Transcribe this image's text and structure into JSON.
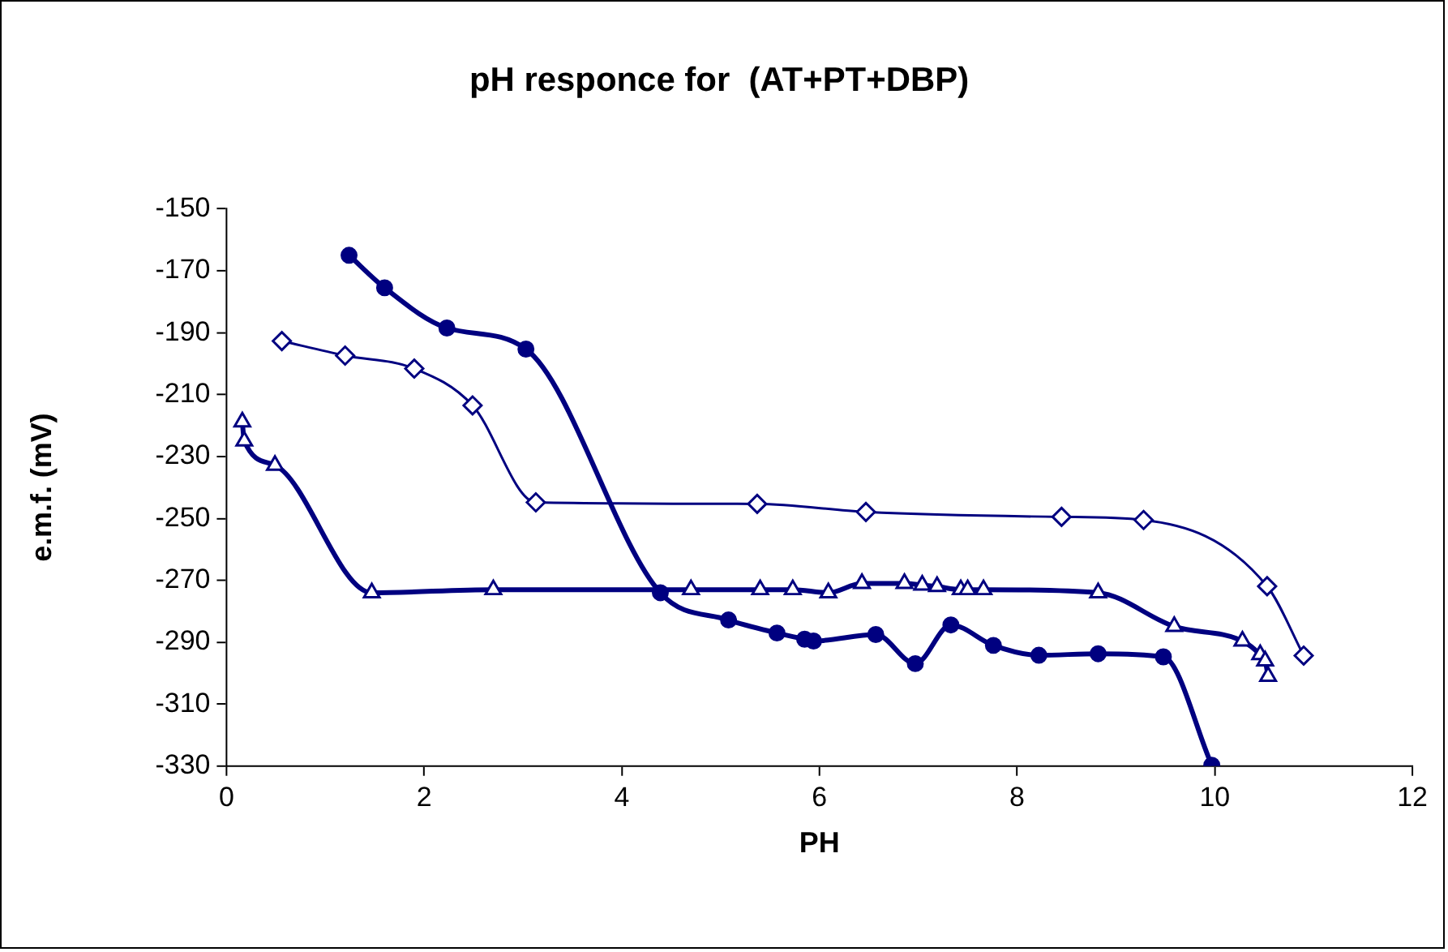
{
  "chart_data": {
    "type": "line",
    "title": "pH responce for  (AT+PT+DBP)",
    "xlabel": "PH",
    "ylabel": "e.m.f. (mV)",
    "xlim": [
      0,
      12
    ],
    "xticks": [
      0,
      2,
      4,
      6,
      8,
      10,
      12
    ],
    "ylim": [
      -330,
      -150
    ],
    "yticks": [
      -330,
      -310,
      -290,
      -270,
      -250,
      -230,
      -210,
      -190,
      -170,
      -150
    ],
    "series": [
      {
        "color": "#000080",
        "marker": "circle",
        "x": [
          1.24,
          1.6,
          2.23,
          3.03,
          4.39,
          5.08,
          5.57,
          5.85,
          5.94,
          6.57,
          6.97,
          7.33,
          7.76,
          8.22,
          8.82,
          9.48,
          9.97
        ],
        "values": [
          -165,
          -175.5,
          -188.5,
          -195.3,
          -274,
          -282.8,
          -287,
          -289,
          -289.6,
          -287.5,
          -296.9,
          -284.4,
          -291,
          -294.2,
          -293.7,
          -294.7,
          -329.7
        ]
      },
      {
        "color": "#000080",
        "marker": "diamond",
        "x": [
          0.56,
          1.2,
          1.9,
          2.49,
          3.13,
          5.37,
          6.47,
          8.45,
          9.28,
          10.53,
          10.9
        ],
        "values": [
          -192.7,
          -197.4,
          -201.6,
          -213.5,
          -244.8,
          -245.3,
          -247.9,
          -249.5,
          -250.5,
          -271.9,
          -294.3
        ]
      },
      {
        "color": "#000080",
        "marker": "triangle",
        "x": [
          0.16,
          0.18,
          0.49,
          1.47,
          2.7,
          4.7,
          5.4,
          5.73,
          6.09,
          6.43,
          6.86,
          7.04,
          7.19,
          7.43,
          7.5,
          7.66,
          8.82,
          9.59,
          10.28,
          10.46,
          10.51,
          10.54
        ],
        "values": [
          -218.8,
          -225,
          -232.8,
          -274,
          -273,
          -273,
          -273,
          -273,
          -274,
          -271,
          -271,
          -271.5,
          -272,
          -273,
          -273,
          -273,
          -274,
          -284.9,
          -289.6,
          -294,
          -296,
          -301
        ]
      }
    ]
  }
}
